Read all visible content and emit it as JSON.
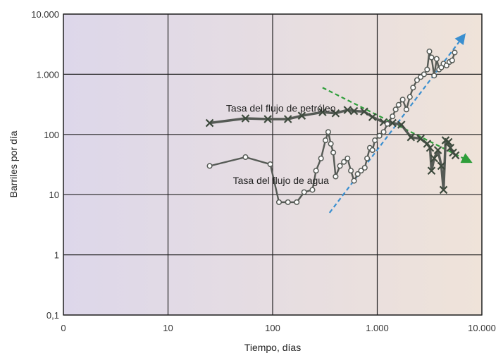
{
  "chart_data": {
    "type": "line",
    "xlabel": "Tiempo, días",
    "ylabel": "Barriles por día",
    "x_scale": "log",
    "y_scale": "log",
    "xlim": [
      1,
      10000
    ],
    "ylim": [
      0.1,
      10000
    ],
    "grid": true,
    "x_ticks": [
      {
        "value": 1,
        "label": "0"
      },
      {
        "value": 10,
        "label": "10"
      },
      {
        "value": 100,
        "label": "100"
      },
      {
        "value": 1000,
        "label": "1.000"
      },
      {
        "value": 10000,
        "label": "10.000"
      }
    ],
    "y_ticks": [
      {
        "value": 0.1,
        "label": "0,1"
      },
      {
        "value": 1,
        "label": "1"
      },
      {
        "value": 10,
        "label": "10"
      },
      {
        "value": 100,
        "label": "100"
      },
      {
        "value": 1000,
        "label": "1.000"
      },
      {
        "value": 10000,
        "label": "10.000"
      }
    ],
    "colors": {
      "plot_bg_left": "#ddd7ea",
      "plot_bg_right": "#efe3d9",
      "grid": "#222222",
      "series_line": "#555a55",
      "oil_marker": "#3d4a3d",
      "water_marker": "#ffffff",
      "oil_trend": "#2e9e3a",
      "water_trend": "#3a8fd0"
    },
    "annotations": [
      {
        "text": "Tasa del flujo de petróleo",
        "x": 120,
        "y": 240
      },
      {
        "text": "Tasa del flujo de agua",
        "x": 120,
        "y": 15
      }
    ],
    "series": [
      {
        "marker": "x",
        "points": [
          [
            25,
            155
          ],
          [
            55,
            185
          ],
          [
            90,
            180
          ],
          [
            140,
            180
          ],
          [
            190,
            205
          ],
          [
            300,
            235
          ],
          [
            400,
            225
          ],
          [
            520,
            255
          ],
          [
            600,
            245
          ],
          [
            750,
            240
          ],
          [
            900,
            195
          ],
          [
            1150,
            160
          ],
          [
            1400,
            155
          ],
          [
            1700,
            145
          ],
          [
            2100,
            90
          ],
          [
            2600,
            85
          ],
          [
            3000,
            70
          ],
          [
            3200,
            60
          ],
          [
            3300,
            25
          ],
          [
            3500,
            40
          ],
          [
            3800,
            55
          ],
          [
            4100,
            30
          ],
          [
            4300,
            12
          ],
          [
            4500,
            80
          ],
          [
            4800,
            75
          ],
          [
            5000,
            60
          ],
          [
            5300,
            50
          ],
          [
            5600,
            45
          ]
        ]
      },
      {
        "marker": "circle",
        "points": [
          [
            25,
            30
          ],
          [
            55,
            42
          ],
          [
            95,
            32
          ],
          [
            115,
            7.5
          ],
          [
            140,
            7.5
          ],
          [
            170,
            7.5
          ],
          [
            200,
            11
          ],
          [
            240,
            12
          ],
          [
            260,
            25
          ],
          [
            290,
            40
          ],
          [
            320,
            80
          ],
          [
            340,
            110
          ],
          [
            360,
            70
          ],
          [
            380,
            50
          ],
          [
            400,
            20
          ],
          [
            440,
            30
          ],
          [
            480,
            35
          ],
          [
            520,
            40
          ],
          [
            560,
            25
          ],
          [
            600,
            17
          ],
          [
            650,
            22
          ],
          [
            700,
            25
          ],
          [
            760,
            28
          ],
          [
            800,
            40
          ],
          [
            850,
            60
          ],
          [
            900,
            55
          ],
          [
            950,
            80
          ],
          [
            1050,
            95
          ],
          [
            1150,
            110
          ],
          [
            1250,
            150
          ],
          [
            1400,
            200
          ],
          [
            1500,
            260
          ],
          [
            1600,
            310
          ],
          [
            1750,
            380
          ],
          [
            1900,
            260
          ],
          [
            2050,
            420
          ],
          [
            2200,
            600
          ],
          [
            2400,
            800
          ],
          [
            2600,
            900
          ],
          [
            2800,
            1000
          ],
          [
            3000,
            1200
          ],
          [
            3150,
            2400
          ],
          [
            3300,
            1900
          ],
          [
            3500,
            950
          ],
          [
            3700,
            1800
          ],
          [
            3900,
            1200
          ],
          [
            4100,
            1300
          ],
          [
            4300,
            1500
          ],
          [
            4600,
            1400
          ],
          [
            4900,
            1600
          ],
          [
            5200,
            1700
          ],
          [
            5500,
            2300
          ]
        ]
      }
    ],
    "trends": [
      {
        "kind": "oil",
        "from": [
          300,
          600
        ],
        "to": [
          7800,
          35
        ]
      },
      {
        "kind": "water",
        "from": [
          350,
          5
        ],
        "to": [
          6800,
          4500
        ]
      }
    ]
  }
}
